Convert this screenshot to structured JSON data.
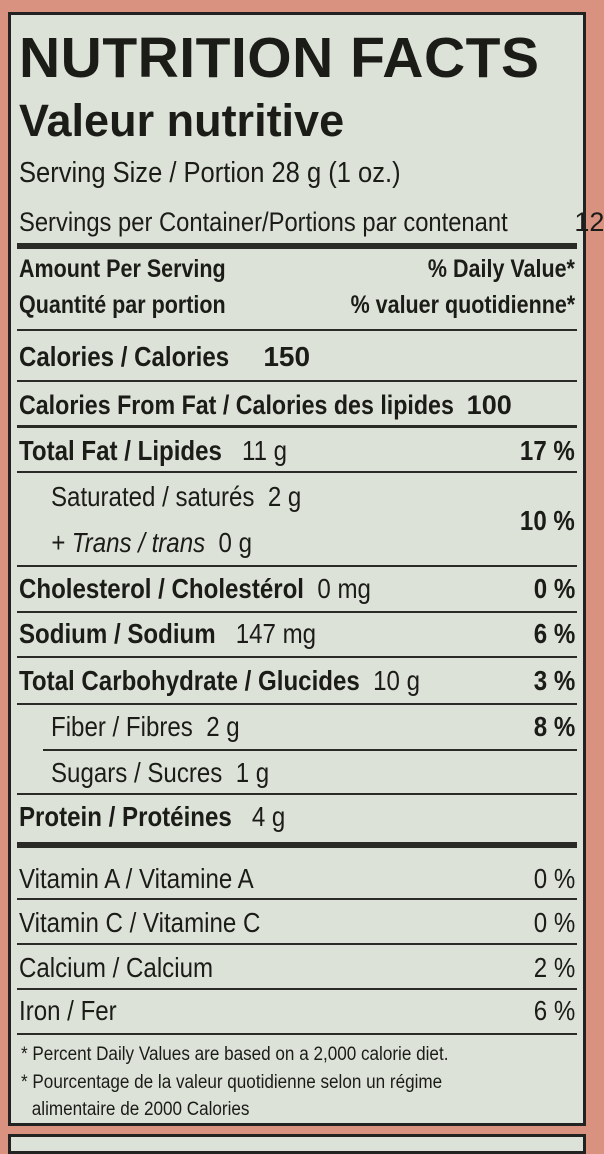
{
  "title_en": "NUTRITION FACTS",
  "title_fr": "Valeur nutritive",
  "serving_size": "Serving Size / Portion 28 g (1 oz.)",
  "servings_per_container_label": "Servings per Container/Portions par contenant",
  "servings_per_container": "12",
  "header": {
    "amount_en": "Amount Per Serving",
    "dv_en": "% Daily Value*",
    "amount_fr": "Quantité par portion",
    "dv_fr": "% valuer quotidienne*"
  },
  "calories": {
    "label": "Calories / Calories",
    "value": "150"
  },
  "calories_fat": {
    "label": "Calories From Fat / Calories des lipides",
    "value": "100"
  },
  "nutrients": [
    {
      "label": "Total Fat / Lipides",
      "amount": "11 g",
      "dv": "17 %"
    },
    {
      "label": "Saturated / saturés",
      "amount": "2 g",
      "dv": "10 %"
    },
    {
      "label": "+ Trans / trans",
      "amount": "0 g"
    },
    {
      "label": "Cholesterol / Cholestérol",
      "amount": "0 mg",
      "dv": "0 %"
    },
    {
      "label": "Sodium / Sodium",
      "amount": "147 mg",
      "dv": "6 %"
    },
    {
      "label": "Total Carbohydrate / Glucides",
      "amount": "10 g",
      "dv": "3 %"
    },
    {
      "label": "Fiber / Fibres",
      "amount": "2 g",
      "dv": "8 %"
    },
    {
      "label": "Sugars / Sucres",
      "amount": "1 g"
    },
    {
      "label": "Protein / Protéines",
      "amount": "4 g"
    }
  ],
  "vitamins": [
    {
      "label": "Vitamin A / Vitamine A",
      "dv": "0 %"
    },
    {
      "label": "Vitamin C / Vitamine C",
      "dv": "0 %"
    },
    {
      "label": "Calcium / Calcium",
      "dv": "2 %"
    },
    {
      "label": "Iron / Fer",
      "dv": "6 %"
    }
  ],
  "footnote_en": "* Percent Daily Values are based on a 2,000 calorie diet.",
  "footnote_fr_1": "* Pourcentage de la valeur quotidienne selon un régime",
  "footnote_fr_2": "alimentaire de 2000 Calories",
  "colors": {
    "label_bg": "#dde2d8",
    "package": "#d9927f",
    "ink": "#1b1b18"
  }
}
